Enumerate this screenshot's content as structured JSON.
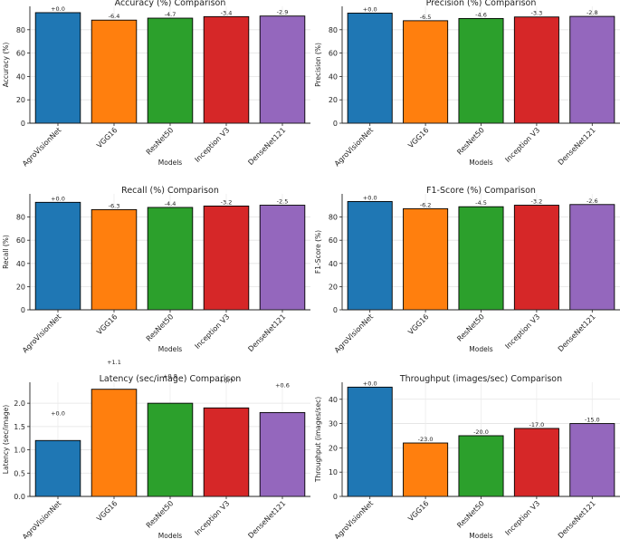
{
  "chart_data": [
    {
      "type": "bar",
      "title": "Accuracy (%) Comparison",
      "xlabel": "Models",
      "ylabel": "Accuracy (%)",
      "ylim": [
        0,
        100
      ],
      "yticks": [
        0,
        20,
        40,
        60,
        80
      ],
      "categories": [
        "AgroVisionNet",
        "VGG16",
        "ResNet50",
        "Inception V3",
        "DenseNet121"
      ],
      "values": [
        94.6,
        88.2,
        89.9,
        91.2,
        91.7
      ],
      "data_labels": [
        "+0.0",
        "-6.4",
        "-4.7",
        "-3.4",
        "-2.9"
      ],
      "colors": [
        "#1f77b4",
        "#ff7f0e",
        "#2ca02c",
        "#d62728",
        "#9467bd"
      ],
      "grid": true
    },
    {
      "type": "bar",
      "title": "Precision (%) Comparison",
      "xlabel": "Models",
      "ylabel": "Precision (%)",
      "ylim": [
        0,
        100
      ],
      "yticks": [
        0,
        20,
        40,
        60,
        80
      ],
      "categories": [
        "AgroVisionNet",
        "VGG16",
        "ResNet50",
        "Inception V3",
        "DenseNet121"
      ],
      "values": [
        94.2,
        87.7,
        89.6,
        90.9,
        91.4
      ],
      "data_labels": [
        "+0.0",
        "-6.5",
        "-4.6",
        "-3.3",
        "-2.8"
      ],
      "colors": [
        "#1f77b4",
        "#ff7f0e",
        "#2ca02c",
        "#d62728",
        "#9467bd"
      ],
      "grid": true
    },
    {
      "type": "bar",
      "title": "Recall (%) Comparison",
      "xlabel": "Models",
      "ylabel": "Recall (%)",
      "ylim": [
        0,
        100
      ],
      "yticks": [
        0,
        20,
        40,
        60,
        80
      ],
      "categories": [
        "AgroVisionNet",
        "VGG16",
        "ResNet50",
        "Inception V3",
        "DenseNet121"
      ],
      "values": [
        92.7,
        86.4,
        88.3,
        89.5,
        90.2
      ],
      "data_labels": [
        "+0.0",
        "-6.3",
        "-4.4",
        "-3.2",
        "-2.5"
      ],
      "colors": [
        "#1f77b4",
        "#ff7f0e",
        "#2ca02c",
        "#d62728",
        "#9467bd"
      ],
      "grid": true
    },
    {
      "type": "bar",
      "title": "F1-Score (%) Comparison",
      "xlabel": "Models",
      "ylabel": "F1-Score (%)",
      "ylim": [
        0,
        100
      ],
      "yticks": [
        0,
        20,
        40,
        60,
        80
      ],
      "categories": [
        "AgroVisionNet",
        "VGG16",
        "ResNet50",
        "Inception V3",
        "DenseNet121"
      ],
      "values": [
        93.4,
        87.2,
        88.9,
        90.2,
        90.8
      ],
      "data_labels": [
        "+0.0",
        "-6.2",
        "-4.5",
        "-3.2",
        "-2.6"
      ],
      "colors": [
        "#1f77b4",
        "#ff7f0e",
        "#2ca02c",
        "#d62728",
        "#9467bd"
      ],
      "grid": true
    },
    {
      "type": "bar",
      "title": "Latency (sec/image) Comparison",
      "xlabel": "Models",
      "ylabel": "Latency (sec/image)",
      "ylim": [
        0,
        2.45
      ],
      "yticks": [
        0.0,
        0.5,
        1.0,
        1.5,
        2.0
      ],
      "tick_decimals": 1,
      "categories": [
        "AgroVisionNet",
        "VGG16",
        "ResNet50",
        "Inception V3",
        "DenseNet121"
      ],
      "values": [
        1.2,
        2.3,
        2.0,
        1.9,
        1.8
      ],
      "data_labels": [
        "+0.0",
        "+1.1",
        "+0.8",
        "+0.7",
        "+0.6"
      ],
      "label_values": [
        1.7,
        2.8,
        2.5,
        2.4,
        2.3
      ],
      "colors": [
        "#1f77b4",
        "#ff7f0e",
        "#2ca02c",
        "#d62728",
        "#9467bd"
      ],
      "grid": true
    },
    {
      "type": "bar",
      "title": "Throughput (images/sec) Comparison",
      "xlabel": "Models",
      "ylabel": "Throughput (images/sec)",
      "ylim": [
        0,
        47
      ],
      "yticks": [
        0,
        10,
        20,
        30,
        40
      ],
      "categories": [
        "AgroVisionNet",
        "VGG16",
        "ResNet50",
        "Inception V3",
        "DenseNet121"
      ],
      "values": [
        45,
        22,
        25,
        28,
        30
      ],
      "data_labels": [
        "+0.0",
        "-23.0",
        "-20.0",
        "-17.0",
        "-15.0"
      ],
      "colors": [
        "#1f77b4",
        "#ff7f0e",
        "#2ca02c",
        "#d62728",
        "#9467bd"
      ],
      "grid": true
    }
  ]
}
